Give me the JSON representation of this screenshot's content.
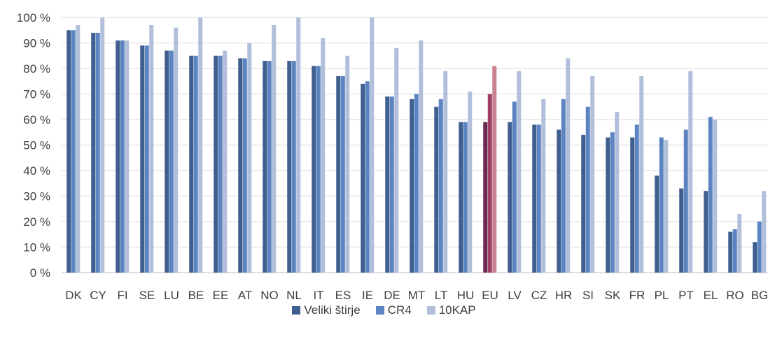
{
  "chart_data": {
    "type": "bar",
    "categories": [
      "DK",
      "CY",
      "FI",
      "SE",
      "LU",
      "BE",
      "EE",
      "AT",
      "NO",
      "NL",
      "IT",
      "ES",
      "IE",
      "DE",
      "MT",
      "LT",
      "HU",
      "EU",
      "LV",
      "CZ",
      "HR",
      "SI",
      "SK",
      "FR",
      "PL",
      "PT",
      "EL",
      "RO",
      "BG"
    ],
    "series": [
      {
        "name": "Veliki štirje",
        "color": "#3f5f8f",
        "values": [
          95,
          94,
          91,
          89,
          87,
          85,
          85,
          84,
          83,
          83,
          81,
          77,
          74,
          69,
          68,
          65,
          59,
          59,
          59,
          58,
          56,
          54,
          53,
          53,
          38,
          33,
          32,
          16,
          12
        ]
      },
      {
        "name": "CR4",
        "color": "#5b84c0",
        "values": [
          95,
          94,
          91,
          89,
          87,
          85,
          85,
          84,
          83,
          83,
          81,
          77,
          75,
          69,
          70,
          68,
          59,
          70,
          67,
          58,
          68,
          65,
          55,
          58,
          53,
          56,
          61,
          17,
          20
        ]
      },
      {
        "name": "10KAP",
        "color": "#b2bfdb",
        "values": [
          97,
          100,
          91,
          97,
          96,
          100,
          87,
          90,
          97,
          100,
          92,
          85,
          100,
          88,
          91,
          79,
          71,
          81,
          79,
          68,
          84,
          77,
          63,
          77,
          52,
          79,
          60,
          23,
          32
        ]
      }
    ],
    "highlight": {
      "category": "EU",
      "colors": [
        "#6b2a50",
        "#9c3f62",
        "#c98090"
      ]
    },
    "yticks": [
      "0 %",
      "10 %",
      "20 %",
      "30 %",
      "40 %",
      "50 %",
      "60 %",
      "70 %",
      "80 %",
      "90 %",
      "100 %"
    ],
    "ylim": [
      0,
      100
    ],
    "grid": true,
    "legend_position": "bottom"
  }
}
